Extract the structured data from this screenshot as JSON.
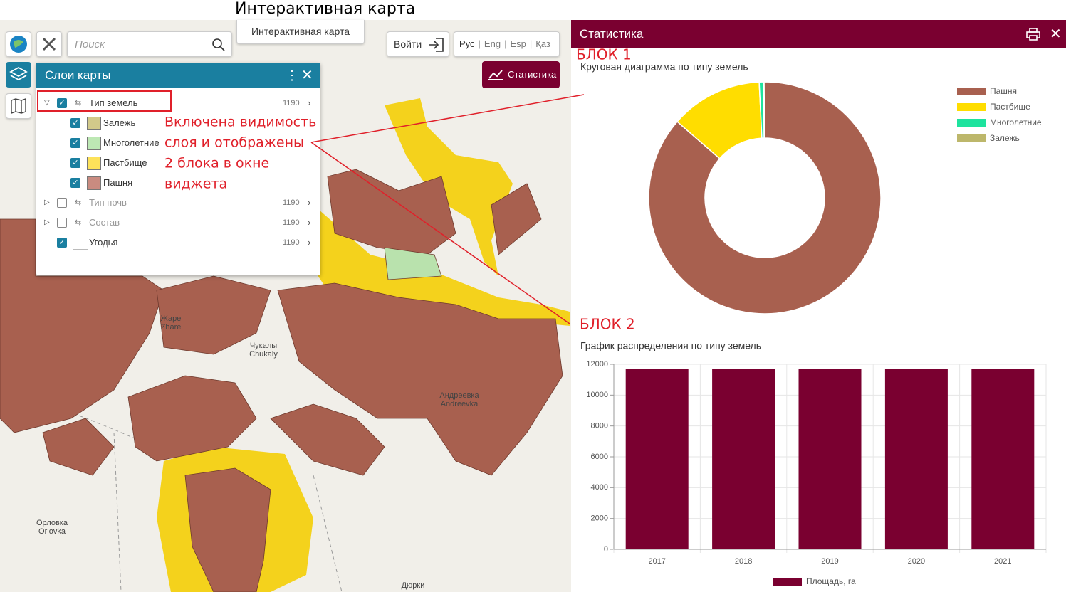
{
  "header": {
    "title": "Интерактивная карта"
  },
  "toolbar": {
    "search_placeholder": "Поиск",
    "map_button": "Интерактивная карта",
    "login": "Войти",
    "languages": [
      "Рус",
      "Eng",
      "Esp",
      "Қаз"
    ],
    "statistics_button": "Статистика"
  },
  "layers_panel": {
    "title": "Слои карты",
    "layers": [
      {
        "name": "Тип земель",
        "count": 1190,
        "checked": true,
        "expanded": true,
        "classes": [
          {
            "name": "Залежь",
            "swatch": "#d2c98a"
          },
          {
            "name": "Многолетние",
            "swatch": "#bde8b4"
          },
          {
            "name": "Пастбище",
            "swatch": "#fde25a"
          },
          {
            "name": "Пашня",
            "swatch": "#c98b80"
          }
        ]
      },
      {
        "name": "Тип почв",
        "count": 1190,
        "checked": false,
        "expanded": false
      },
      {
        "name": "Состав",
        "count": 1190,
        "checked": false,
        "expanded": false
      },
      {
        "name": "Угодья",
        "count": 1190,
        "checked": true,
        "expanded": false
      }
    ]
  },
  "map_labels": [
    {
      "text": "Жаре",
      "sub": "Zhare"
    },
    {
      "text": "Чукалы",
      "sub": "Chukaly"
    },
    {
      "text": "Андреевка",
      "sub": "Andreevka"
    },
    {
      "text": "Орловка",
      "sub": "Orlovka"
    },
    {
      "text": "Дюрки",
      "sub": null
    }
  ],
  "annotations": {
    "note": [
      "Включена видимость",
      "слоя и отображены",
      "2 блока в окне",
      "виджета"
    ],
    "block1": "БЛОК 1",
    "block2": "БЛОК 2"
  },
  "statistics": {
    "title": "Статистика"
  },
  "chart_data": [
    {
      "type": "pie",
      "donut": true,
      "title": "Круговая диаграмма по типу земель",
      "categories": [
        "Пашня",
        "Пастбище",
        "Многолетние",
        "Залежь"
      ],
      "values": [
        10100,
        1500,
        70,
        20
      ],
      "colors": [
        "#a8604f",
        "#ffdd00",
        "#1ee39e",
        "#bdb76b"
      ]
    },
    {
      "type": "bar",
      "title": "График распределения по типу земель",
      "categories": [
        "2017",
        "2018",
        "2019",
        "2020",
        "2021"
      ],
      "series": [
        {
          "name": "Площадь, га",
          "color": "#7a0030",
          "values": [
            11690,
            11690,
            11690,
            11690,
            11690
          ]
        }
      ],
      "ylim": [
        0,
        12000
      ],
      "yticks": [
        0,
        2000,
        4000,
        6000,
        8000,
        10000,
        12000
      ],
      "grid": true
    }
  ]
}
